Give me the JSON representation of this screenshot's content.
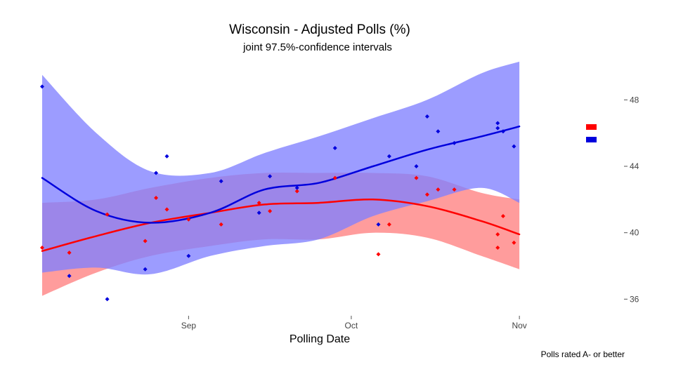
{
  "chart_data": {
    "type": "scatter",
    "title": "Wisconsin - Adjusted Polls (%)",
    "subtitle": "joint 97.5%-confidence intervals",
    "xlabel": "Polling Date",
    "ylabel": "",
    "caption": "Polls rated A- or better",
    "x_range": [
      "2016-08-05",
      "2016-11-05"
    ],
    "ylim": [
      35,
      50
    ],
    "x_ticks": [
      {
        "date": "2016-09-01",
        "label": "Sep"
      },
      {
        "date": "2016-10-01",
        "label": "Oct"
      },
      {
        "date": "2016-11-01",
        "label": "Nov"
      }
    ],
    "y_ticks": [
      36,
      40,
      44,
      48
    ],
    "grid": false,
    "legend_position": "right",
    "series": [
      {
        "color": "#ff0000",
        "band_color": "#ff8080",
        "points": [
          {
            "x": "2016-08-05",
            "y": 39.1
          },
          {
            "x": "2016-08-10",
            "y": 38.8
          },
          {
            "x": "2016-08-17",
            "y": 41.1
          },
          {
            "x": "2016-08-24",
            "y": 39.5
          },
          {
            "x": "2016-08-26",
            "y": 42.1
          },
          {
            "x": "2016-08-28",
            "y": 41.4
          },
          {
            "x": "2016-09-01",
            "y": 40.8
          },
          {
            "x": "2016-09-07",
            "y": 40.5
          },
          {
            "x": "2016-09-14",
            "y": 41.8
          },
          {
            "x": "2016-09-16",
            "y": 41.3
          },
          {
            "x": "2016-09-21",
            "y": 42.5
          },
          {
            "x": "2016-09-28",
            "y": 43.3
          },
          {
            "x": "2016-10-06",
            "y": 38.7
          },
          {
            "x": "2016-10-08",
            "y": 40.5
          },
          {
            "x": "2016-10-13",
            "y": 43.3
          },
          {
            "x": "2016-10-15",
            "y": 42.3
          },
          {
            "x": "2016-10-17",
            "y": 42.6
          },
          {
            "x": "2016-10-20",
            "y": 42.6
          },
          {
            "x": "2016-10-28",
            "y": 39.1
          },
          {
            "x": "2016-10-28",
            "y": 39.9
          },
          {
            "x": "2016-10-29",
            "y": 41.0
          },
          {
            "x": "2016-10-31",
            "y": 39.4
          }
        ],
        "trend": [
          {
            "x": "2016-08-05",
            "y": 38.9,
            "lo": 36.2,
            "hi": 41.8
          },
          {
            "x": "2016-08-15",
            "y": 39.8,
            "lo": 37.6,
            "hi": 42.0
          },
          {
            "x": "2016-08-25",
            "y": 40.6,
            "lo": 38.6,
            "hi": 42.7
          },
          {
            "x": "2016-09-05",
            "y": 41.2,
            "lo": 39.2,
            "hi": 43.3
          },
          {
            "x": "2016-09-15",
            "y": 41.7,
            "lo": 39.6,
            "hi": 43.6
          },
          {
            "x": "2016-09-25",
            "y": 41.8,
            "lo": 39.6,
            "hi": 43.6
          },
          {
            "x": "2016-10-05",
            "y": 42.0,
            "lo": 40.0,
            "hi": 43.6
          },
          {
            "x": "2016-10-15",
            "y": 41.6,
            "lo": 39.7,
            "hi": 43.4
          },
          {
            "x": "2016-10-25",
            "y": 40.7,
            "lo": 38.6,
            "hi": 42.4
          },
          {
            "x": "2016-11-01",
            "y": 39.9,
            "lo": 37.8,
            "hi": 42.0
          }
        ]
      },
      {
        "color": "#0000dd",
        "band_color": "#8080ff",
        "points": [
          {
            "x": "2016-08-05",
            "y": 48.8
          },
          {
            "x": "2016-08-10",
            "y": 37.4
          },
          {
            "x": "2016-08-17",
            "y": 36.0
          },
          {
            "x": "2016-08-24",
            "y": 37.8
          },
          {
            "x": "2016-08-26",
            "y": 43.6
          },
          {
            "x": "2016-08-28",
            "y": 44.6
          },
          {
            "x": "2016-09-01",
            "y": 38.6
          },
          {
            "x": "2016-09-07",
            "y": 43.1
          },
          {
            "x": "2016-09-14",
            "y": 41.2
          },
          {
            "x": "2016-09-16",
            "y": 43.4
          },
          {
            "x": "2016-09-21",
            "y": 42.7
          },
          {
            "x": "2016-09-28",
            "y": 45.1
          },
          {
            "x": "2016-10-06",
            "y": 40.5
          },
          {
            "x": "2016-10-08",
            "y": 44.6
          },
          {
            "x": "2016-10-13",
            "y": 44.0
          },
          {
            "x": "2016-10-15",
            "y": 47.0
          },
          {
            "x": "2016-10-17",
            "y": 46.1
          },
          {
            "x": "2016-10-20",
            "y": 45.4
          },
          {
            "x": "2016-10-28",
            "y": 46.6
          },
          {
            "x": "2016-10-28",
            "y": 46.3
          },
          {
            "x": "2016-10-29",
            "y": 46.1
          },
          {
            "x": "2016-10-31",
            "y": 45.2
          }
        ],
        "trend": [
          {
            "x": "2016-08-05",
            "y": 43.3,
            "lo": 37.6,
            "hi": 49.5
          },
          {
            "x": "2016-08-15",
            "y": 41.3,
            "lo": 37.9,
            "hi": 46.0
          },
          {
            "x": "2016-08-25",
            "y": 40.6,
            "lo": 37.5,
            "hi": 43.7
          },
          {
            "x": "2016-09-05",
            "y": 41.2,
            "lo": 38.6,
            "hi": 43.6
          },
          {
            "x": "2016-09-15",
            "y": 42.6,
            "lo": 39.2,
            "hi": 44.8
          },
          {
            "x": "2016-09-25",
            "y": 43.0,
            "lo": 39.6,
            "hi": 45.8
          },
          {
            "x": "2016-10-05",
            "y": 44.0,
            "lo": 41.0,
            "hi": 46.9
          },
          {
            "x": "2016-10-15",
            "y": 45.0,
            "lo": 41.9,
            "hi": 48.0
          },
          {
            "x": "2016-10-25",
            "y": 45.8,
            "lo": 42.7,
            "hi": 49.6
          },
          {
            "x": "2016-11-01",
            "y": 46.4,
            "lo": 41.8,
            "hi": 50.3
          }
        ]
      }
    ]
  }
}
